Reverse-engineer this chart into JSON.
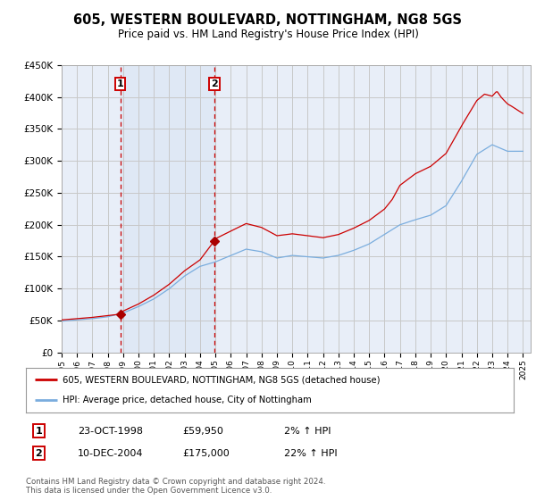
{
  "title": "605, WESTERN BOULEVARD, NOTTINGHAM, NG8 5GS",
  "subtitle": "Price paid vs. HM Land Registry's House Price Index (HPI)",
  "ylim": [
    0,
    450000
  ],
  "yticks": [
    0,
    50000,
    100000,
    150000,
    200000,
    250000,
    300000,
    350000,
    400000,
    450000
  ],
  "ytick_labels": [
    "£0",
    "£50K",
    "£100K",
    "£150K",
    "£200K",
    "£250K",
    "£300K",
    "£350K",
    "£400K",
    "£450K"
  ],
  "xlim_start": 1995.0,
  "xlim_end": 2025.5,
  "background_color": "#ffffff",
  "plot_bg_color": "#e8eef8",
  "grid_color": "#c8c8c8",
  "sale1_date": 1998.81,
  "sale1_price": 59950,
  "sale1_label": "1",
  "sale1_date_str": "23-OCT-1998",
  "sale1_price_str": "£59,950",
  "sale1_hpi_str": "2% ↑ HPI",
  "sale2_date": 2004.94,
  "sale2_price": 175000,
  "sale2_label": "2",
  "sale2_date_str": "10-DEC-2004",
  "sale2_price_str": "£175,000",
  "sale2_hpi_str": "22% ↑ HPI",
  "line1_color": "#cc0000",
  "line2_color": "#7aadde",
  "vline_color": "#cc0000",
  "marker_color": "#aa0000",
  "legend_line1": "605, WESTERN BOULEVARD, NOTTINGHAM, NG8 5GS (detached house)",
  "legend_line2": "HPI: Average price, detached house, City of Nottingham",
  "footer": "Contains HM Land Registry data © Crown copyright and database right 2024.\nThis data is licensed under the Open Government Licence v3.0."
}
